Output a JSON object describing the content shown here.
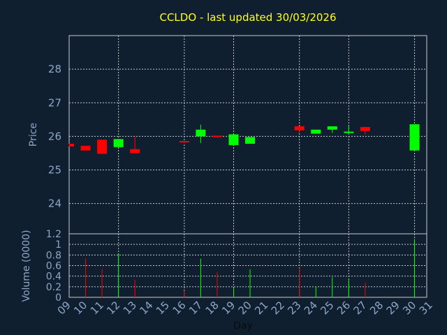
{
  "chart_data": {
    "type": "candlestick",
    "title": "CCLDO - last updated 30/03/2026",
    "xlabel": "Day",
    "price_ylabel": "Price",
    "volume_ylabel": "Volume (0000)",
    "x_ticks": [
      "09",
      "10",
      "11",
      "12",
      "13",
      "14",
      "15",
      "16",
      "17",
      "18",
      "19",
      "20",
      "21",
      "22",
      "23",
      "24",
      "25",
      "26",
      "27",
      "28",
      "29",
      "30",
      "31"
    ],
    "price_ticks": [
      24,
      25,
      26,
      27,
      28
    ],
    "price_tick_labels": [
      "24",
      "25",
      "26",
      "27",
      "28"
    ],
    "price_ylim": [
      23.1,
      29.0
    ],
    "volume_ticks": [
      0,
      0.2,
      0.4,
      0.6,
      0.8,
      1,
      1.2
    ],
    "volume_tick_labels": [
      "0",
      "0.2",
      "0.4",
      "0.6",
      "0.8",
      "1",
      "1.2"
    ],
    "volume_ylim": [
      0,
      1.2
    ],
    "grid": true,
    "colors": {
      "background": "#0f1f30",
      "title": "#ffff1e",
      "axis_text": "#8ea6c6",
      "up": "#00ff00",
      "down": "#ff0000",
      "grid": "#c8c8c8"
    },
    "candles": [
      {
        "day": 9,
        "open": 25.78,
        "close": 25.7,
        "high": 25.78,
        "low": 25.7
      },
      {
        "day": 10,
        "open": 25.72,
        "close": 25.58,
        "high": 25.72,
        "low": 25.58
      },
      {
        "day": 11,
        "open": 25.9,
        "close": 25.48,
        "high": 25.9,
        "low": 25.48
      },
      {
        "day": 12,
        "open": 25.68,
        "close": 25.92,
        "high": 25.92,
        "low": 25.68
      },
      {
        "day": 13,
        "open": 25.62,
        "close": 25.5,
        "high": 26.0,
        "low": 25.5
      },
      {
        "day": 16,
        "open": 25.84,
        "close": 25.8,
        "high": 25.84,
        "low": 25.8
      },
      {
        "day": 17,
        "open": 26.0,
        "close": 26.2,
        "high": 26.35,
        "low": 25.8
      },
      {
        "day": 18,
        "open": 26.0,
        "close": 25.96,
        "high": 26.0,
        "low": 25.96
      },
      {
        "day": 19,
        "open": 25.74,
        "close": 26.06,
        "high": 26.06,
        "low": 25.74
      },
      {
        "day": 20,
        "open": 25.78,
        "close": 25.98,
        "high": 25.98,
        "low": 25.78
      },
      {
        "day": 23,
        "open": 26.3,
        "close": 26.18,
        "high": 26.3,
        "low": 26.1
      },
      {
        "day": 24,
        "open": 26.08,
        "close": 26.2,
        "high": 26.2,
        "low": 26.08
      },
      {
        "day": 25,
        "open": 26.2,
        "close": 26.3,
        "high": 26.3,
        "low": 26.1
      },
      {
        "day": 26,
        "open": 26.08,
        "close": 26.12,
        "high": 26.3,
        "low": 26.05
      },
      {
        "day": 27,
        "open": 26.28,
        "close": 26.16,
        "high": 26.28,
        "low": 26.05
      },
      {
        "day": 30,
        "open": 25.58,
        "close": 26.36,
        "high": 26.36,
        "low": 25.58
      }
    ],
    "volume": [
      {
        "day": 10,
        "value": 0.73,
        "dir": "down"
      },
      {
        "day": 11,
        "value": 0.53,
        "dir": "down"
      },
      {
        "day": 12,
        "value": 0.83,
        "dir": "up"
      },
      {
        "day": 13,
        "value": 0.33,
        "dir": "down"
      },
      {
        "day": 16,
        "value": 0.12,
        "dir": "down"
      },
      {
        "day": 17,
        "value": 0.73,
        "dir": "up"
      },
      {
        "day": 18,
        "value": 0.48,
        "dir": "down"
      },
      {
        "day": 19,
        "value": 0.17,
        "dir": "up"
      },
      {
        "day": 20,
        "value": 0.53,
        "dir": "up"
      },
      {
        "day": 23,
        "value": 0.55,
        "dir": "down"
      },
      {
        "day": 24,
        "value": 0.21,
        "dir": "up"
      },
      {
        "day": 25,
        "value": 0.38,
        "dir": "up"
      },
      {
        "day": 26,
        "value": 0.33,
        "dir": "up"
      },
      {
        "day": 27,
        "value": 0.28,
        "dir": "down"
      },
      {
        "day": 30,
        "value": 1.1,
        "dir": "up"
      }
    ]
  }
}
